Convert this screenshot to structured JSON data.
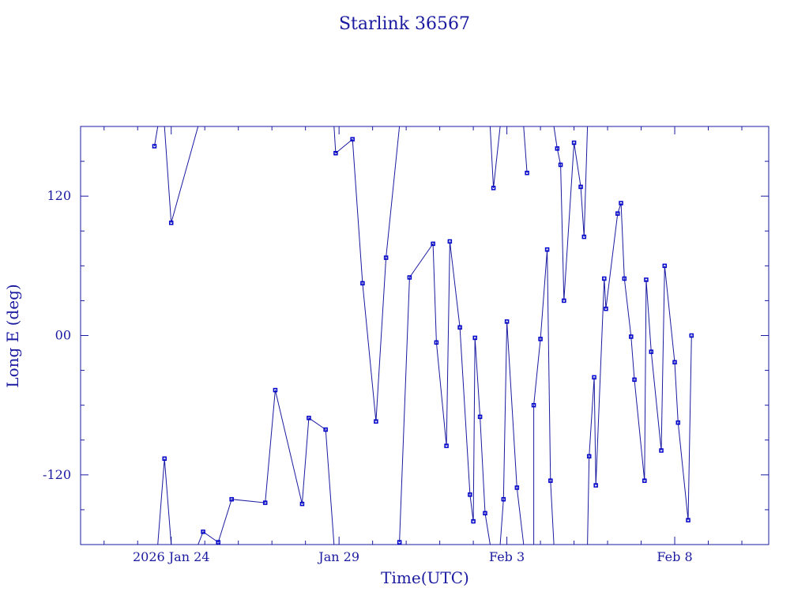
{
  "chart_data": {
    "type": "line",
    "title": "Starlink 36567",
    "xlabel": "Time(UTC)",
    "ylabel": "Long E (deg)",
    "x_ticks": [
      {
        "label": "2026 Jan 24",
        "day": 24
      },
      {
        "label": "Jan 29",
        "day": 29
      },
      {
        "label": "Feb  3",
        "day": 34
      },
      {
        "label": "Feb  8",
        "day": 39
      }
    ],
    "y_ticks": [
      {
        "label": "120",
        "value": 120
      },
      {
        "label": "00",
        "value": 0
      },
      {
        "label": "-120",
        "value": -120
      }
    ],
    "xlim_days": [
      21.3,
      41.8
    ],
    "ylim": [
      -180,
      180
    ],
    "x_unit": "days (Jan)",
    "grid": false,
    "points": [
      [
        23.5,
        163
      ],
      [
        23.6,
        180
      ],
      [
        23.8,
        180
      ],
      [
        24.0,
        97
      ],
      [
        24.8,
        180
      ],
      [
        23.6,
        -180
      ],
      [
        23.8,
        -106
      ],
      [
        24.0,
        -180
      ],
      [
        24.8,
        -180
      ],
      [
        24.95,
        -169
      ],
      [
        25.4,
        -178
      ],
      [
        25.8,
        -141
      ],
      [
        26.8,
        -144
      ],
      [
        27.1,
        -47
      ],
      [
        27.9,
        -145
      ],
      [
        28.1,
        -71
      ],
      [
        28.6,
        -81
      ],
      [
        28.85,
        -180
      ],
      [
        28.85,
        180
      ],
      [
        28.9,
        157
      ],
      [
        29.4,
        169
      ],
      [
        29.7,
        45
      ],
      [
        30.1,
        -74
      ],
      [
        30.4,
        67
      ],
      [
        30.8,
        180
      ],
      [
        30.8,
        -178
      ],
      [
        31.1,
        50
      ],
      [
        31.8,
        79
      ],
      [
        31.9,
        -6
      ],
      [
        32.2,
        -95
      ],
      [
        32.3,
        81
      ],
      [
        32.6,
        7
      ],
      [
        32.9,
        -137
      ],
      [
        33.0,
        -160
      ],
      [
        33.05,
        -2
      ],
      [
        33.2,
        -70
      ],
      [
        33.35,
        -153
      ],
      [
        33.5,
        -180
      ],
      [
        33.5,
        180
      ],
      [
        33.6,
        127
      ],
      [
        33.8,
        180
      ],
      [
        33.8,
        -180
      ],
      [
        33.9,
        -141
      ],
      [
        34.0,
        12
      ],
      [
        34.3,
        -131
      ],
      [
        34.5,
        -180
      ],
      [
        34.5,
        180
      ],
      [
        34.6,
        140
      ],
      [
        34.8,
        -180
      ],
      [
        34.8,
        -60
      ],
      [
        35.0,
        -3
      ],
      [
        35.2,
        74
      ],
      [
        35.3,
        -125
      ],
      [
        35.4,
        -180
      ],
      [
        35.4,
        180
      ],
      [
        35.5,
        161
      ],
      [
        35.6,
        147
      ],
      [
        35.7,
        30
      ],
      [
        36.0,
        166
      ],
      [
        36.2,
        128
      ],
      [
        36.3,
        85
      ],
      [
        36.4,
        180
      ],
      [
        36.4,
        -180
      ],
      [
        36.45,
        -104
      ],
      [
        36.6,
        -36
      ],
      [
        36.65,
        -129
      ],
      [
        36.9,
        49
      ],
      [
        36.95,
        23
      ],
      [
        37.3,
        105
      ],
      [
        37.4,
        114
      ],
      [
        37.5,
        49
      ],
      [
        37.7,
        -1
      ],
      [
        37.8,
        -38
      ],
      [
        38.1,
        -125
      ],
      [
        38.15,
        48
      ],
      [
        38.3,
        -14
      ],
      [
        38.6,
        -99
      ],
      [
        38.7,
        60
      ],
      [
        39.0,
        -23
      ],
      [
        39.1,
        -75
      ],
      [
        39.4,
        -159
      ],
      [
        39.5,
        0
      ]
    ]
  }
}
